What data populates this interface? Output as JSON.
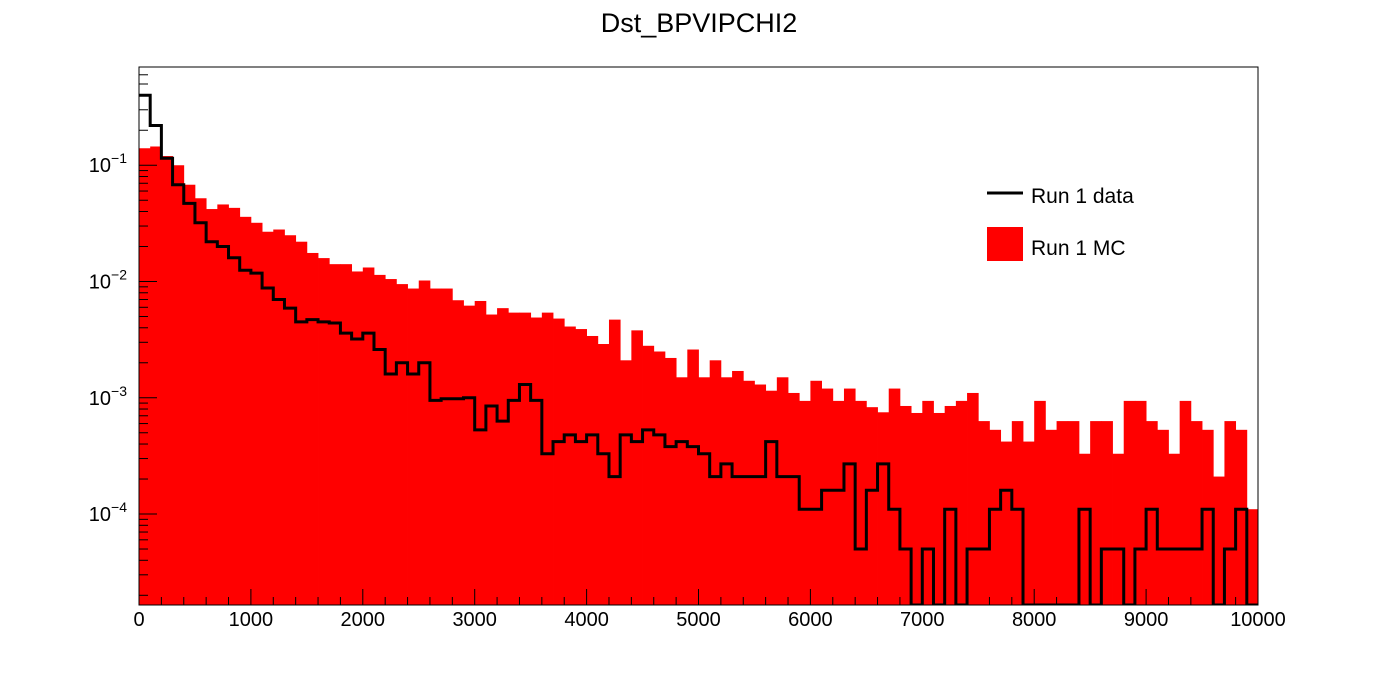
{
  "chart_data": {
    "type": "histogram",
    "title": "Dst_BPVIPCHI2",
    "xlabel": "",
    "ylabel": "",
    "x_range": [
      0,
      10000
    ],
    "y_range": [
      1.65e-05,
      0.7
    ],
    "y_scale": "log",
    "x_ticks": [
      "0",
      "1000",
      "2000",
      "3000",
      "4000",
      "5000",
      "6000",
      "7000",
      "8000",
      "9000",
      "10000"
    ],
    "y_ticks": [
      {
        "base": "10",
        "exp": "−1",
        "value": 0.1
      },
      {
        "base": "10",
        "exp": "−2",
        "value": 0.01
      },
      {
        "base": "10",
        "exp": "−3",
        "value": 0.001
      },
      {
        "base": "10",
        "exp": "−4",
        "value": 0.0001
      }
    ],
    "grid": false,
    "legend_position": "top-right",
    "bin_width": 100,
    "series": [
      {
        "name": "Run 1 MC",
        "style": "filled",
        "color": "#ff0000",
        "values": [
          0.14,
          0.145,
          0.12,
          0.1,
          0.068,
          0.052,
          0.042,
          0.046,
          0.043,
          0.036,
          0.032,
          0.0268,
          0.028,
          0.025,
          0.022,
          0.0176,
          0.0159,
          0.0141,
          0.0141,
          0.0122,
          0.0132,
          0.0114,
          0.0105,
          0.0095,
          0.0087,
          0.0102,
          0.0087,
          0.0087,
          0.0069,
          0.0062,
          0.0068,
          0.0052,
          0.0059,
          0.0054,
          0.0054,
          0.0049,
          0.0054,
          0.0048,
          0.0041,
          0.0039,
          0.0034,
          0.0029,
          0.0047,
          0.0021,
          0.0038,
          0.0028,
          0.0025,
          0.0022,
          0.0015,
          0.0026,
          0.0015,
          0.0021,
          0.0015,
          0.0017,
          0.0014,
          0.0013,
          0.00115,
          0.0015,
          0.0011,
          0.00094,
          0.0014,
          0.0012,
          0.00094,
          0.0012,
          0.00094,
          0.00083,
          0.00075,
          0.0012,
          0.00085,
          0.00074,
          0.00094,
          0.00074,
          0.00085,
          0.00094,
          0.0011,
          0.00063,
          0.00053,
          0.00042,
          0.00063,
          0.00042,
          0.00094,
          0.00053,
          0.00063,
          0.00063,
          0.00033,
          0.00063,
          0.00063,
          0.00033,
          0.00094,
          0.00094,
          0.00063,
          0.00053,
          0.00033,
          0.00094,
          0.00063,
          0.00053,
          0.00021,
          0.00063,
          0.00053,
          0.00011
        ]
      },
      {
        "name": "Run 1 data",
        "style": "step",
        "color": "#000000",
        "values": [
          0.4,
          0.22,
          0.115,
          0.068,
          0.047,
          0.032,
          0.022,
          0.02,
          0.016,
          0.0125,
          0.0118,
          0.0088,
          0.007,
          0.0059,
          0.0045,
          0.0047,
          0.0045,
          0.0044,
          0.0036,
          0.0032,
          0.0036,
          0.0026,
          0.0016,
          0.002,
          0.0016,
          0.002,
          0.00095,
          0.00098,
          0.00098,
          0.001,
          0.00053,
          0.00085,
          0.00063,
          0.00095,
          0.0013,
          0.00095,
          0.00033,
          0.00042,
          0.00048,
          0.00042,
          0.00048,
          0.00033,
          0.00021,
          0.00048,
          0.00042,
          0.00053,
          0.00048,
          0.00038,
          0.00042,
          0.00038,
          0.00033,
          0.00021,
          0.00027,
          0.00021,
          0.00021,
          0.00021,
          0.00042,
          0.00021,
          0.00021,
          0.00011,
          0.00011,
          0.00016,
          0.00016,
          0.00027,
          5e-05,
          0.00016,
          0.00027,
          0.00011,
          5e-05,
          1.3e-05,
          5e-05,
          1.3e-05,
          0.00011,
          1.3e-05,
          5e-05,
          5e-05,
          0.00011,
          0.00016,
          0.00011,
          1.3e-05,
          1.3e-05,
          1.3e-05,
          1.3e-05,
          1.3e-05,
          0.00011,
          1.3e-05,
          5e-05,
          5e-05,
          1.3e-05,
          5e-05,
          0.00011,
          5e-05,
          5e-05,
          5e-05,
          5e-05,
          0.00011,
          1.3e-05,
          5e-05,
          0.00011,
          1.3e-05
        ]
      }
    ]
  },
  "legend": {
    "data_label": "Run 1 data",
    "mc_label": "Run 1 MC"
  }
}
